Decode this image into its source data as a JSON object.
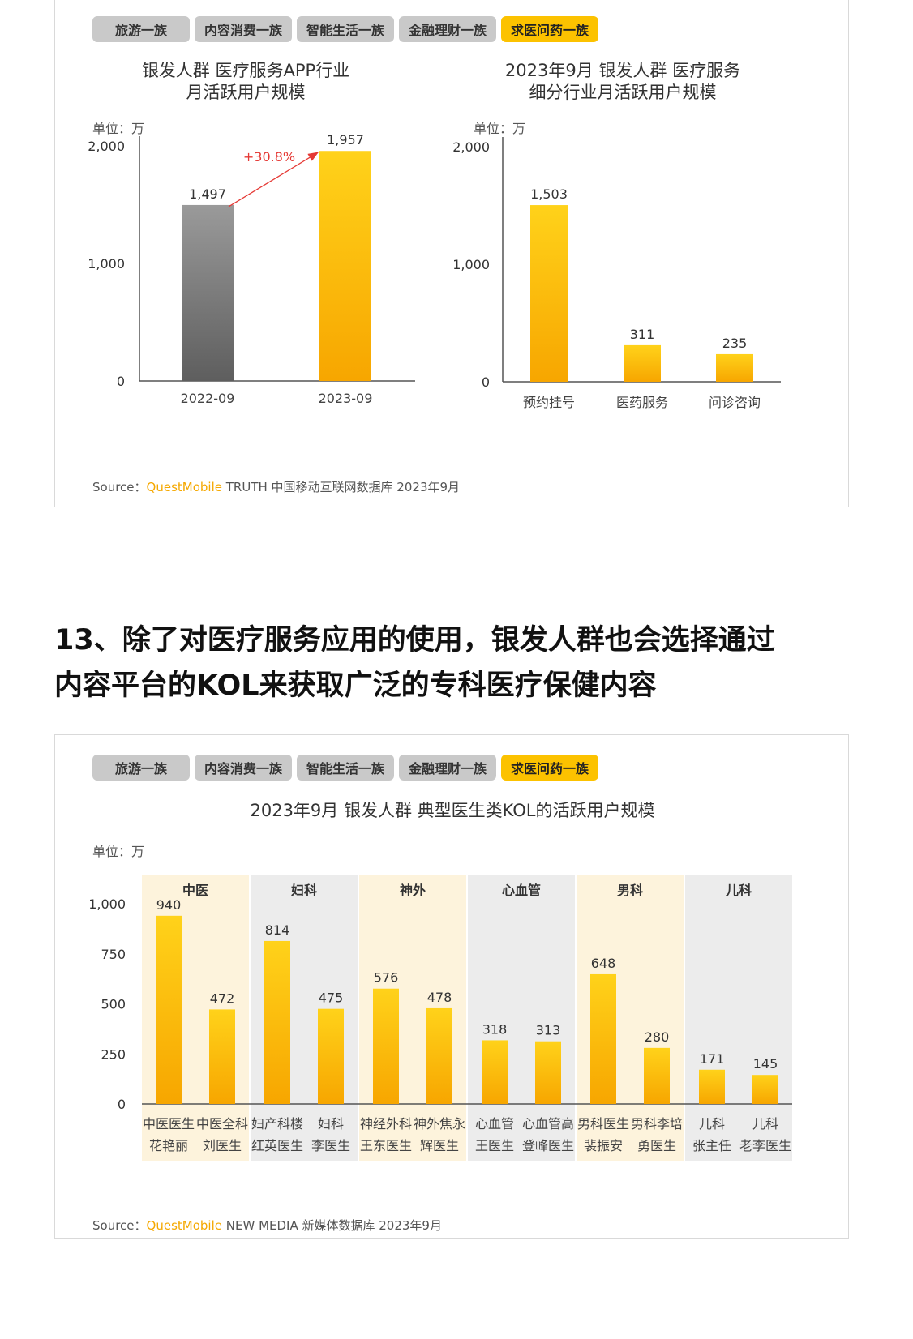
{
  "tabs": [
    "旅游一族",
    "内容消费一族",
    "智能生活一族",
    "金融理财一族",
    "求医问药一族"
  ],
  "active_tab": "求医问药一族",
  "colors": {
    "accent": "#fcc200",
    "gray_bar": "#8c8c8c",
    "arrow": "#e53935",
    "tab_inactive": "#c9c9c9",
    "band_light": "#fdf3dc",
    "band_gray": "#ececec"
  },
  "panel1": {
    "chart1": {
      "title_line1": "银发人群 医疗服务APP行业",
      "title_line2": "月活跃用户规模",
      "unit": "单位：万",
      "growth_label": "+30.8%"
    },
    "chart2": {
      "title_line1": "2023年9月 银发人群 医疗服务",
      "title_line2": "细分行业月活跃用户规模",
      "unit": "单位：万"
    },
    "source": {
      "prefix": "Source：",
      "brand": "QuestMobile",
      "text": "TRUTH 中国移动互联网数据库 2023年9月"
    }
  },
  "heading": {
    "line1": "13、除了对医疗服务应用的使用，银发人群也会选择通过",
    "line2": "内容平台的KOL来获取广泛的专科医疗保健内容"
  },
  "panel2": {
    "title": "2023年9月 银发人群 典型医生类KOL的活跃用户规模",
    "unit": "单位：万",
    "source": {
      "prefix": "Source：",
      "brand": "QuestMobile",
      "text": "NEW MEDIA 新媒体数据库 2023年9月"
    }
  },
  "chart_data": [
    {
      "type": "bar",
      "title": "银发人群 医疗服务APP行业 月活跃用户规模",
      "unit": "单位：万",
      "categories": [
        "2022-09",
        "2023-09"
      ],
      "values": [
        1497,
        1957
      ],
      "labels": [
        "1,497",
        "1,957"
      ],
      "y_ticks": [
        "0",
        "1,000",
        "2,000"
      ],
      "ylim": [
        0,
        2000
      ],
      "annotation": "+30.8%",
      "bar_colors": [
        "gray",
        "accent"
      ]
    },
    {
      "type": "bar",
      "title": "2023年9月 银发人群 医疗服务 细分行业月活跃用户规模",
      "unit": "单位：万",
      "categories": [
        "预约挂号",
        "医药服务",
        "问诊咨询"
      ],
      "values": [
        1503,
        311,
        235
      ],
      "labels": [
        "1,503",
        "311",
        "235"
      ],
      "y_ticks": [
        "0",
        "1,000",
        "2,000"
      ],
      "ylim": [
        0,
        2000
      ]
    },
    {
      "type": "bar",
      "title": "2023年9月 银发人群 典型医生类KOL的活跃用户规模",
      "unit": "单位：万",
      "ylim": [
        0,
        1000
      ],
      "y_ticks": [
        "0",
        "250",
        "500",
        "750",
        "1,000"
      ],
      "groups": [
        {
          "name": "中医",
          "bars": [
            {
              "line1": "中医医生",
              "line2": "花艳丽",
              "value": 940
            },
            {
              "line1": "中医全科",
              "line2": "刘医生",
              "value": 472
            }
          ]
        },
        {
          "name": "妇科",
          "bars": [
            {
              "line1": "妇产科楼",
              "line2": "红英医生",
              "value": 814
            },
            {
              "line1": "妇科",
              "line2": "李医生",
              "value": 475
            }
          ]
        },
        {
          "name": "神外",
          "bars": [
            {
              "line1": "神经外科",
              "line2": "王东医生",
              "value": 576
            },
            {
              "line1": "神外焦永",
              "line2": "辉医生",
              "value": 478
            }
          ]
        },
        {
          "name": "心血管",
          "bars": [
            {
              "line1": "心血管",
              "line2": "王医生",
              "value": 318
            },
            {
              "line1": "心血管高",
              "line2": "登峰医生",
              "value": 313
            }
          ]
        },
        {
          "name": "男科",
          "bars": [
            {
              "line1": "男科医生",
              "line2": "裴振安",
              "value": 648
            },
            {
              "line1": "男科李培",
              "line2": "勇医生",
              "value": 280
            }
          ]
        },
        {
          "name": "儿科",
          "bars": [
            {
              "line1": "儿科",
              "line2": "张主任",
              "value": 171
            },
            {
              "line1": "儿科",
              "line2": "老李医生",
              "value": 145
            }
          ]
        }
      ]
    }
  ]
}
